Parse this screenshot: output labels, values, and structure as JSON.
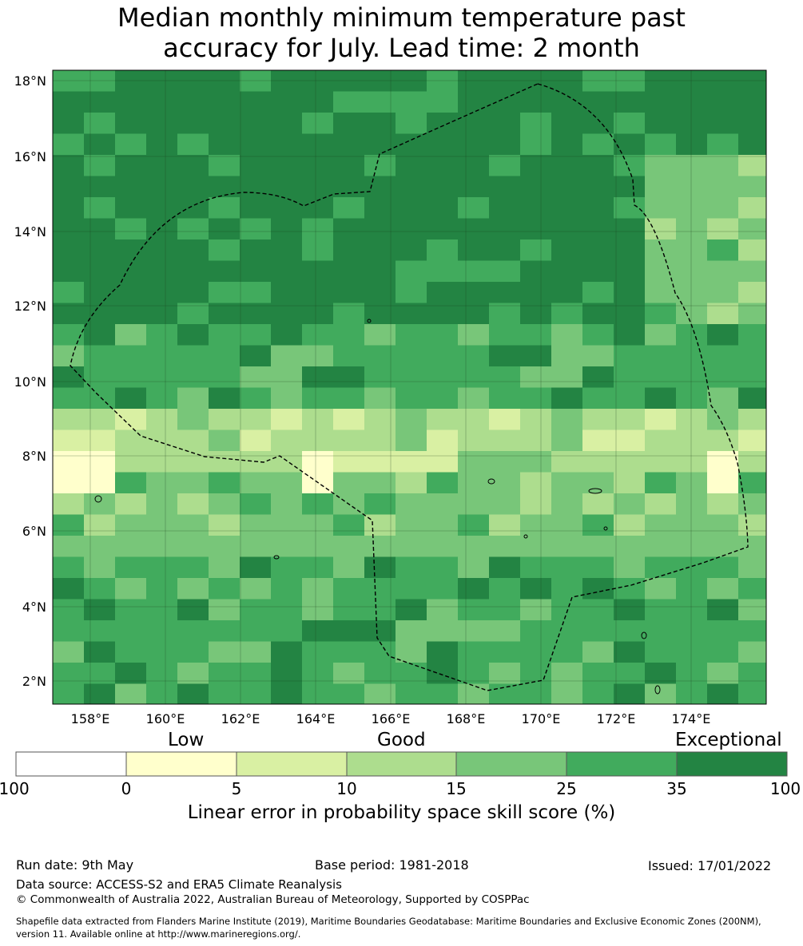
{
  "title_line1": "Median monthly minimum temperature past",
  "title_line2": "accuracy for July. Lead time: 2 month",
  "map": {
    "lon_ticks": [
      "158°E",
      "160°E",
      "162°E",
      "164°E",
      "166°E",
      "168°E",
      "170°E",
      "172°E",
      "174°E"
    ],
    "lat_ticks": [
      "18°N",
      "16°N",
      "14°N",
      "12°N",
      "10°N",
      "8°N",
      "6°N",
      "4°N",
      "2°N"
    ],
    "lon_range": [
      157.0,
      176.0
    ],
    "lat_range": [
      1.4,
      18.3
    ],
    "grid_lines": true,
    "boundary": "EEZ dashed outline"
  },
  "colorbar": {
    "categories": [
      "Low",
      "Good",
      "Exceptional"
    ],
    "ticks": [
      "-100",
      "0",
      "5",
      "10",
      "15",
      "25",
      "35",
      "100"
    ],
    "colors": [
      "#ffffff",
      "#ffffcc",
      "#d9f0a3",
      "#addd8e",
      "#78c679",
      "#41ab5d",
      "#238443"
    ],
    "label": "Linear error in probability space skill score (%)"
  },
  "footer": {
    "run_date": "Run date: 9th May",
    "base_period": "Base period: 1981-2018",
    "issued": "Issued: 17/01/2022",
    "data_source": "Data source: ACCESS-S2 and ERA5 Climate Reanalysis",
    "copyright": "© Commonwealth of Australia 2022, Australian Bureau of Meteorology, Supported by COSPPac",
    "shapefile1": "Shapefile data extracted from Flanders Marine Institute (2019), Maritime Boundaries Geodatabase: Maritime Boundaries and Exclusive Economic Zones (200NM),",
    "shapefile2": "version 11. Available online at http://www.marineregions.org/."
  }
}
